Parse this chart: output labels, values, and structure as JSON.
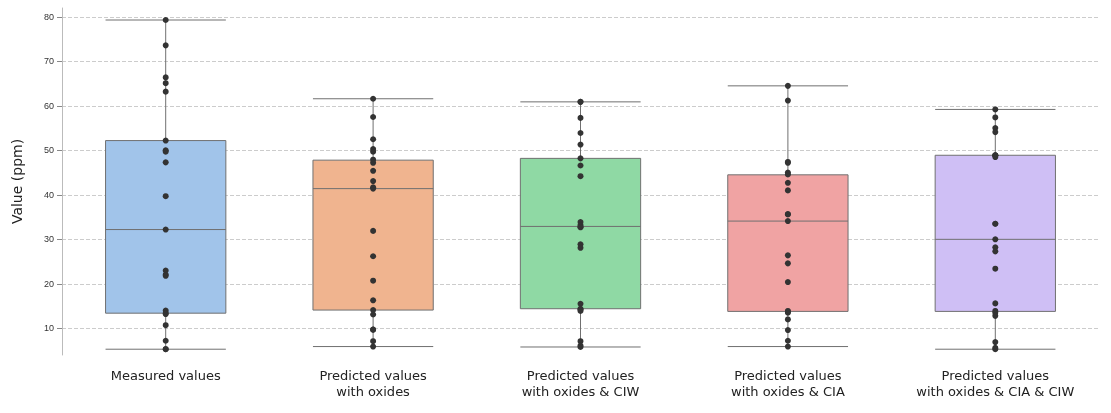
{
  "chart_data": {
    "type": "box",
    "ylabel": "Value (ppm)",
    "categories": [
      "Measured values",
      "Predicted values\nwith oxides",
      "Predicted values\nwith oxides & CIW",
      "Predicted values\nwith oxides & CIA",
      "Predicted values\nwith oxides & CIA & CIW"
    ],
    "ylim": [
      4,
      82
    ],
    "yticks": [
      10,
      20,
      30,
      40,
      50,
      60,
      70,
      80
    ],
    "grid": "y",
    "series": [
      {
        "colors": [
          "#a1c4ea",
          "#f0b48f",
          "#8fd9a4",
          "#f0a3a3",
          "#cfbff5"
        ],
        "boxes": [
          {
            "low": 5.3,
            "q1": 13.4,
            "median": 32.2,
            "q3": 52.2,
            "high": 79.3
          },
          {
            "low": 5.9,
            "q1": 14.1,
            "median": 41.4,
            "q3": 47.8,
            "high": 61.6
          },
          {
            "low": 5.8,
            "q1": 14.4,
            "median": 32.9,
            "q3": 48.2,
            "high": 60.9
          },
          {
            "low": 5.9,
            "q1": 13.8,
            "median": 34.1,
            "q3": 44.5,
            "high": 64.5
          },
          {
            "low": 5.3,
            "q1": 13.8,
            "median": 30.0,
            "q3": 48.9,
            "high": 59.2
          }
        ]
      },
      {
        "type": "scatter",
        "color": "#333333",
        "marker": "circle",
        "x": [
          "Measured values",
          "Measured values",
          "Measured values",
          "Measured values",
          "Measured values",
          "Measured values",
          "Measured values",
          "Measured values",
          "Measured values",
          "Measured values",
          "Measured values",
          "Measured values",
          "Measured values",
          "Measured values",
          "Measured values",
          "Measured values",
          "Measured values",
          "Measured values",
          "Measured values",
          "Measured values",
          "Measured values",
          "Predicted values\nwith oxides",
          "Predicted values\nwith oxides",
          "Predicted values\nwith oxides",
          "Predicted values\nwith oxides",
          "Predicted values\nwith oxides",
          "Predicted values\nwith oxides",
          "Predicted values\nwith oxides",
          "Predicted values\nwith oxides",
          "Predicted values\nwith oxides",
          "Predicted values\nwith oxides",
          "Predicted values\nwith oxides",
          "Predicted values\nwith oxides",
          "Predicted values\nwith oxides",
          "Predicted values\nwith oxides",
          "Predicted values\nwith oxides",
          "Predicted values\nwith oxides",
          "Predicted values\nwith oxides",
          "Predicted values\nwith oxides",
          "Predicted values\nwith oxides",
          "Predicted values\nwith oxides",
          "Predicted values\nwith oxides",
          "Predicted values\nwith oxides & CIW",
          "Predicted values\nwith oxides & CIW",
          "Predicted values\nwith oxides & CIW",
          "Predicted values\nwith oxides & CIW",
          "Predicted values\nwith oxides & CIW",
          "Predicted values\nwith oxides & CIW",
          "Predicted values\nwith oxides & CIW",
          "Predicted values\nwith oxides & CIW",
          "Predicted values\nwith oxides & CIW",
          "Predicted values\nwith oxides & CIW",
          "Predicted values\nwith oxides & CIW",
          "Predicted values\nwith oxides & CIW",
          "Predicted values\nwith oxides & CIW",
          "Predicted values\nwith oxides & CIW",
          "Predicted values\nwith oxides & CIW",
          "Predicted values\nwith oxides & CIW",
          "Predicted values\nwith oxides & CIW",
          "Predicted values\nwith oxides & CIW",
          "Predicted values\nwith oxides & CIW",
          "Predicted values\nwith oxides & CIW",
          "Predicted values\nwith oxides & CIW",
          "Predicted values\nwith oxides & CIA",
          "Predicted values\nwith oxides & CIA",
          "Predicted values\nwith oxides & CIA",
          "Predicted values\nwith oxides & CIA",
          "Predicted values\nwith oxides & CIA",
          "Predicted values\nwith oxides & CIA",
          "Predicted values\nwith oxides & CIA",
          "Predicted values\nwith oxides & CIA",
          "Predicted values\nwith oxides & CIA",
          "Predicted values\nwith oxides & CIA",
          "Predicted values\nwith oxides & CIA",
          "Predicted values\nwith oxides & CIA",
          "Predicted values\nwith oxides & CIA",
          "Predicted values\nwith oxides & CIA",
          "Predicted values\nwith oxides & CIA",
          "Predicted values\nwith oxides & CIA",
          "Predicted values\nwith oxides & CIA",
          "Predicted values\nwith oxides & CIA",
          "Predicted values\nwith oxides & CIA",
          "Predicted values\nwith oxides & CIA",
          "Predicted values\nwith oxides & CIA",
          "Predicted values\nwith oxides & CIA & CIW",
          "Predicted values\nwith oxides & CIA & CIW",
          "Predicted values\nwith oxides & CIA & CIW",
          "Predicted values\nwith oxides & CIA & CIW",
          "Predicted values\nwith oxides & CIA & CIW",
          "Predicted values\nwith oxides & CIA & CIW",
          "Predicted values\nwith oxides & CIA & CIW",
          "Predicted values\nwith oxides & CIA & CIW",
          "Predicted values\nwith oxides & CIA & CIW",
          "Predicted values\nwith oxides & CIA & CIW",
          "Predicted values\nwith oxides & CIA & CIW",
          "Predicted values\nwith oxides & CIA & CIW",
          "Predicted values\nwith oxides & CIA & CIW",
          "Predicted values\nwith oxides & CIA & CIW",
          "Predicted values\nwith oxides & CIA & CIW",
          "Predicted values\nwith oxides & CIA & CIW",
          "Predicted values\nwith oxides & CIA & CIW",
          "Predicted values\nwith oxides & CIA & CIW",
          "Predicted values\nwith oxides & CIA & CIW",
          "Predicted values\nwith oxides & CIA & CIW",
          "Predicted values\nwith oxides & CIA & CIW"
        ],
        "values": [
          79.3,
          73.6,
          66.4,
          65.1,
          63.2,
          52.2,
          50.0,
          49.7,
          47.3,
          39.7,
          32.2,
          23.0,
          22.1,
          21.8,
          14.0,
          13.4,
          13.2,
          10.7,
          7.2,
          5.3,
          5.3,
          61.6,
          57.5,
          52.5,
          50.3,
          49.7,
          47.9,
          47.2,
          45.4,
          43.1,
          41.7,
          41.4,
          31.9,
          26.2,
          20.7,
          16.3,
          14.1,
          13.1,
          9.7,
          9.7,
          7.1,
          5.9,
          60.9,
          60.9,
          57.3,
          53.9,
          51.3,
          48.2,
          46.6,
          44.2,
          33.9,
          33.2,
          32.8,
          32.7,
          28.9,
          28.1,
          15.5,
          14.4,
          14.2,
          13.9,
          7.1,
          6.1,
          5.8,
          64.5,
          61.2,
          47.4,
          47.2,
          45.0,
          44.6,
          42.7,
          41.0,
          35.7,
          35.6,
          34.1,
          26.4,
          24.6,
          20.4,
          13.9,
          13.7,
          13.5,
          12.0,
          9.6,
          7.2,
          5.9,
          59.2,
          57.4,
          55.0,
          54.1,
          48.9,
          48.9,
          48.9,
          48.5,
          33.5,
          33.5,
          30.0,
          28.2,
          27.3,
          23.4,
          15.6,
          13.9,
          13.5,
          12.8,
          6.9,
          5.6,
          5.3
        ]
      }
    ]
  }
}
